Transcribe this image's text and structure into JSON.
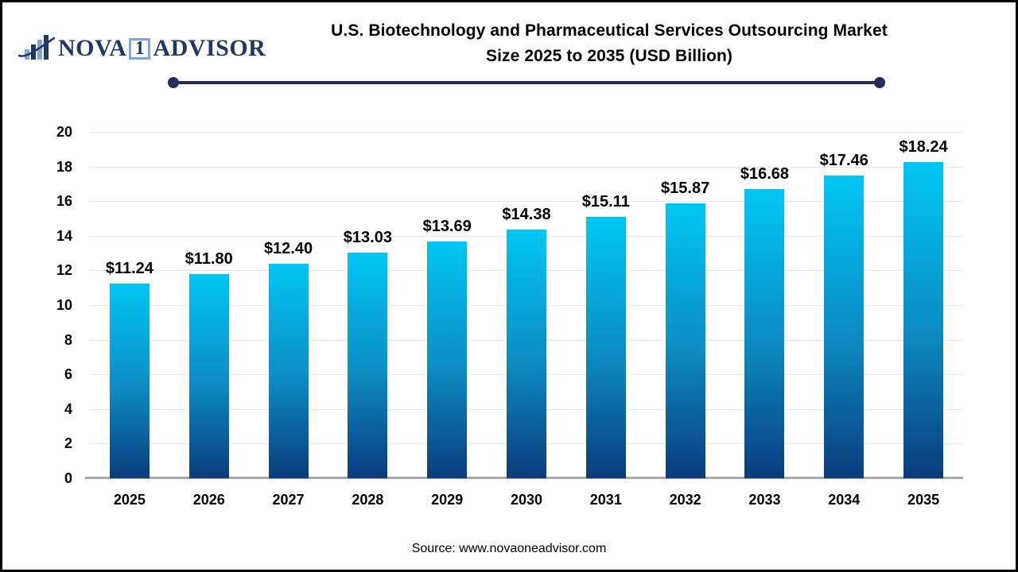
{
  "logo": {
    "brand_left": "NOVA",
    "brand_box": "1",
    "brand_right": "ADVISOR"
  },
  "header": {
    "title_line1": "U.S. Biotechnology and Pharmaceutical Services Outsourcing Market",
    "title_line2": "Size 2025 to 2035 (USD Billion)"
  },
  "footer": {
    "source": "Source: www.novaoneadvisor.com"
  },
  "chart_data": {
    "type": "bar",
    "title": "U.S. Biotechnology and Pharmaceutical Services Outsourcing Market Size 2025 to 2035 (USD Billion)",
    "xlabel": "",
    "ylabel": "",
    "ylim": [
      0,
      20
    ],
    "ytick_step": 2,
    "ytick_labels": [
      "0",
      "2",
      "4",
      "6",
      "8",
      "10",
      "12",
      "14",
      "16",
      "18",
      "20"
    ],
    "grid": true,
    "legend": "none",
    "categories": [
      "2025",
      "2026",
      "2027",
      "2028",
      "2029",
      "2030",
      "2031",
      "2032",
      "2033",
      "2034",
      "2035"
    ],
    "values": [
      11.24,
      11.8,
      12.4,
      13.03,
      13.69,
      14.38,
      15.11,
      15.87,
      16.68,
      17.46,
      18.24
    ],
    "value_labels": [
      "$11.24",
      "$11.80",
      "$12.40",
      "$13.03",
      "$13.69",
      "$14.38",
      "$15.11",
      "$15.87",
      "$16.68",
      "$17.46",
      "$18.24"
    ],
    "colors": {
      "bar_gradient_top": "#00c6f5",
      "bar_gradient_mid": "#0c8ec4",
      "bar_gradient_bottom": "#0a3c7c",
      "gridline": "#e9e9e9",
      "baseline": "#a8a8a8",
      "accent_navy": "#222d5e",
      "logo_navy": "#203864",
      "logo_lightblue": "#7fa8d9"
    }
  }
}
